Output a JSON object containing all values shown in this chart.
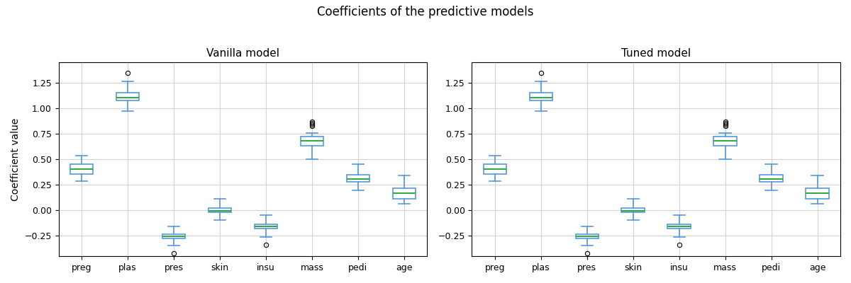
{
  "suptitle": "Coefficients of the predictive models",
  "titles": [
    "Vanilla model",
    "Tuned model"
  ],
  "categories": [
    "preg",
    "plas",
    "pres",
    "skin",
    "insu",
    "mass",
    "pedi",
    "age"
  ],
  "ylabel": "Coefficient value",
  "box_facecolor": "white",
  "box_edgecolor": "#5599dd",
  "median_color": "#33aa44",
  "whisker_color": "#5599dd",
  "cap_color": "#5599dd",
  "flier_color": "black",
  "vanilla": {
    "preg": {
      "q1": 0.355,
      "med": 0.405,
      "q3": 0.455,
      "whisk_lo": 0.285,
      "whisk_hi": 0.535,
      "fliers": []
    },
    "plas": {
      "q1": 1.075,
      "med": 1.105,
      "q3": 1.155,
      "whisk_lo": 0.975,
      "whisk_hi": 1.265,
      "fliers": [
        1.345
      ]
    },
    "pres": {
      "q1": -0.275,
      "med": -0.255,
      "q3": -0.235,
      "whisk_lo": -0.345,
      "whisk_hi": -0.155,
      "fliers": [
        -0.42
      ]
    },
    "skin": {
      "q1": -0.018,
      "med": -0.002,
      "q3": 0.022,
      "whisk_lo": -0.095,
      "whisk_hi": 0.115,
      "fliers": []
    },
    "insu": {
      "q1": -0.175,
      "med": -0.155,
      "q3": -0.135,
      "whisk_lo": -0.26,
      "whisk_hi": -0.045,
      "fliers": [
        -0.335
      ]
    },
    "mass": {
      "q1": 0.635,
      "med": 0.685,
      "q3": 0.725,
      "whisk_lo": 0.505,
      "whisk_hi": 0.76,
      "fliers": [
        0.825,
        0.84,
        0.855,
        0.87
      ]
    },
    "pedi": {
      "q1": 0.278,
      "med": 0.308,
      "q3": 0.348,
      "whisk_lo": 0.195,
      "whisk_hi": 0.455,
      "fliers": []
    },
    "age": {
      "q1": 0.115,
      "med": 0.168,
      "q3": 0.215,
      "whisk_lo": 0.068,
      "whisk_hi": 0.345,
      "fliers": []
    }
  },
  "tuned": {
    "preg": {
      "q1": 0.355,
      "med": 0.405,
      "q3": 0.455,
      "whisk_lo": 0.285,
      "whisk_hi": 0.535,
      "fliers": []
    },
    "plas": {
      "q1": 1.075,
      "med": 1.105,
      "q3": 1.155,
      "whisk_lo": 0.975,
      "whisk_hi": 1.265,
      "fliers": [
        1.345
      ]
    },
    "pres": {
      "q1": -0.275,
      "med": -0.255,
      "q3": -0.235,
      "whisk_lo": -0.345,
      "whisk_hi": -0.155,
      "fliers": [
        -0.42
      ]
    },
    "skin": {
      "q1": -0.018,
      "med": -0.002,
      "q3": 0.022,
      "whisk_lo": -0.095,
      "whisk_hi": 0.115,
      "fliers": []
    },
    "insu": {
      "q1": -0.175,
      "med": -0.155,
      "q3": -0.135,
      "whisk_lo": -0.26,
      "whisk_hi": -0.045,
      "fliers": [
        -0.335
      ]
    },
    "mass": {
      "q1": 0.635,
      "med": 0.685,
      "q3": 0.725,
      "whisk_lo": 0.505,
      "whisk_hi": 0.76,
      "fliers": [
        0.825,
        0.84,
        0.855,
        0.87
      ]
    },
    "pedi": {
      "q1": 0.278,
      "med": 0.308,
      "q3": 0.348,
      "whisk_lo": 0.195,
      "whisk_hi": 0.455,
      "fliers": []
    },
    "age": {
      "q1": 0.115,
      "med": 0.168,
      "q3": 0.215,
      "whisk_lo": 0.068,
      "whisk_hi": 0.345,
      "fliers": []
    }
  },
  "ylim": [
    -0.45,
    1.45
  ],
  "yticks": [
    -0.25,
    0.0,
    0.25,
    0.5,
    0.75,
    1.0,
    1.25
  ],
  "figsize": [
    12.0,
    4.0
  ],
  "dpi": 100
}
